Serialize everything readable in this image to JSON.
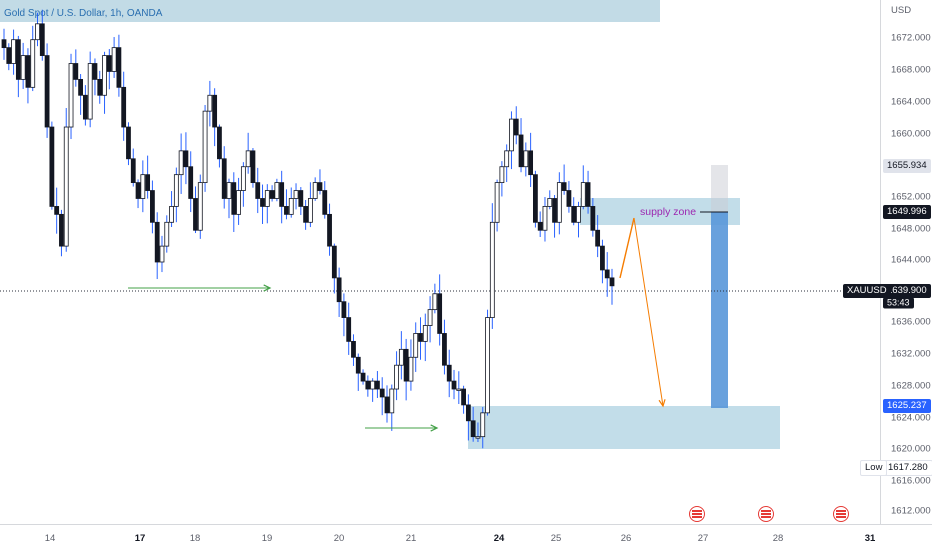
{
  "chart": {
    "symbol_label": "Gold Spot / U.S. Dollar, 1h, OANDA",
    "supply_zone_label": "supply zone",
    "colors": {
      "up": "#131722",
      "down": "#131722",
      "wick": "#2962ff",
      "zone": "#a8cfe0",
      "arrow": "#f57c00",
      "green": "#43a047",
      "bracket": "#4a90d9"
    }
  },
  "price_axis": {
    "currency": "USD",
    "ticks": [
      "1672.000",
      "1668.000",
      "1664.000",
      "1660.000",
      "1656.000",
      "1652.000",
      "1648.000",
      "1644.000",
      "1640.000",
      "1636.000",
      "1632.000",
      "1628.000",
      "1624.000",
      "1620.000",
      "1616.000",
      "1612.000"
    ],
    "labels": {
      "high_marker": "1655.934",
      "target_top": "1649.996",
      "symbol": "XAUUSD",
      "last_price": "1639.900",
      "countdown": "53:43",
      "target_bottom": "1625.237",
      "low_label": "Low",
      "low_value": "1617.280"
    }
  },
  "time_axis": {
    "ticks": [
      {
        "label": "14",
        "bold": false
      },
      {
        "label": "17",
        "bold": true
      },
      {
        "label": "18",
        "bold": false
      },
      {
        "label": "19",
        "bold": false
      },
      {
        "label": "20",
        "bold": false
      },
      {
        "label": "21",
        "bold": false
      },
      {
        "label": "24",
        "bold": true
      },
      {
        "label": "25",
        "bold": false
      },
      {
        "label": "26",
        "bold": false
      },
      {
        "label": "27",
        "bold": false
      },
      {
        "label": "28",
        "bold": false
      },
      {
        "label": "31",
        "bold": true
      }
    ]
  },
  "chart_data": {
    "type": "candlestick",
    "ylim": [
      1610,
      1676
    ],
    "closes": [
      1670,
      1668,
      1671,
      1666,
      1669,
      1665,
      1671,
      1673,
      1669,
      1660,
      1650,
      1649,
      1645,
      1660,
      1668,
      1666,
      1664,
      1661,
      1668,
      1666,
      1664,
      1669,
      1667,
      1670,
      1665,
      1660,
      1656,
      1653,
      1651,
      1654,
      1652,
      1648,
      1643,
      1645,
      1648,
      1650,
      1654,
      1657,
      1655,
      1651,
      1647,
      1653,
      1662,
      1664,
      1660,
      1656,
      1651,
      1653,
      1649,
      1652,
      1655,
      1657,
      1653,
      1651,
      1650,
      1652,
      1651,
      1653,
      1650,
      1649,
      1651,
      1652,
      1650,
      1648,
      1651,
      1653,
      1652,
      1649,
      1645,
      1641,
      1638,
      1636,
      1633,
      1631,
      1629,
      1628,
      1627,
      1628,
      1627,
      1626,
      1624,
      1627,
      1630,
      1632,
      1628,
      1631,
      1634,
      1633,
      1635,
      1637,
      1639,
      1634,
      1630,
      1628,
      1627,
      1627,
      1625,
      1623,
      1621,
      1621,
      1624,
      1636,
      1648,
      1653,
      1655,
      1657,
      1661,
      1659,
      1655,
      1657,
      1654,
      1648,
      1647,
      1650,
      1651,
      1648,
      1653,
      1652,
      1650,
      1648,
      1650,
      1653,
      1650,
      1647,
      1645,
      1642,
      1641,
      1640
    ]
  }
}
